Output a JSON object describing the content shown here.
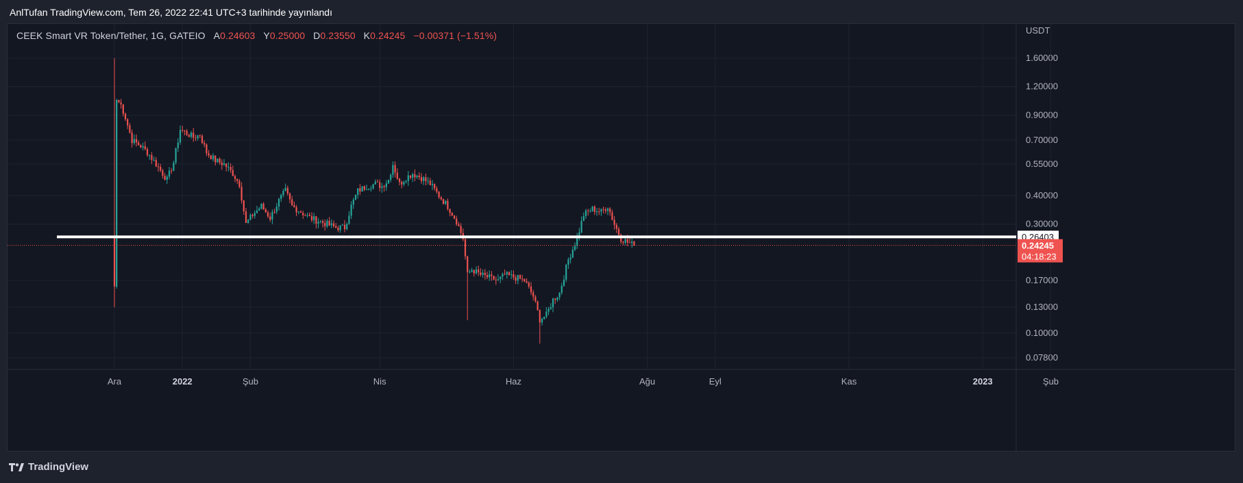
{
  "header": {
    "publish_info": "AnlTufan TradingView.com, Tem 26, 2022 22:41 UTC+3 tarihinde yayınlandı"
  },
  "legend": {
    "symbol": "CEEK Smart VR Token/Tether, 1G, GATEIO",
    "open_label": "A",
    "open": "0.24603",
    "high_label": "Y",
    "high": "0.25000",
    "low_label": "D",
    "low": "0.23550",
    "close_label": "K",
    "close": "0.24245",
    "change": "−0.00371 (−1.51%)"
  },
  "footer": {
    "brand": "TradingView"
  },
  "colors": {
    "up": "#26a69a",
    "down": "#ef5350",
    "background": "#131722",
    "grid": "#1f2330",
    "hline": "#ffffff"
  },
  "chart_data": {
    "type": "candlestick",
    "scale": "log",
    "y_unit": "USDT",
    "y_ticks": [
      1.6,
      1.2,
      0.9,
      0.7,
      0.55,
      0.4,
      0.3,
      0.17,
      0.13,
      0.1,
      0.078
    ],
    "y_tick_labels": [
      "1.60000",
      "1.20000",
      "0.90000",
      "0.70000",
      "0.55000",
      "0.40000",
      "0.30000",
      "0.17000",
      "0.13000",
      "0.10000",
      "0.07800"
    ],
    "x_ticks": [
      {
        "label": "Ara",
        "date": "2021-12-01",
        "bold": false
      },
      {
        "label": "2022",
        "date": "2022-01-01",
        "bold": true
      },
      {
        "label": "Şub",
        "date": "2022-02-01",
        "bold": false
      },
      {
        "label": "Nis",
        "date": "2022-04-01",
        "bold": false
      },
      {
        "label": "Haz",
        "date": "2022-06-01",
        "bold": false
      },
      {
        "label": "Ağu",
        "date": "2022-08-01",
        "bold": false
      },
      {
        "label": "Eyl",
        "date": "2022-09-01",
        "bold": false
      },
      {
        "label": "Kas",
        "date": "2022-11-01",
        "bold": false
      },
      {
        "label": "2023",
        "date": "2023-01-01",
        "bold": true
      },
      {
        "label": "Şub",
        "date": "2023-02-01",
        "bold": false
      }
    ],
    "first_date": "2021-12-01",
    "horizontal_line": {
      "value": 0.26403,
      "label": "0.26403"
    },
    "last_price": {
      "value": 0.24245,
      "label": "0.24245",
      "countdown": "04:18:23"
    },
    "close_anchors": [
      [
        "2021-12-01",
        0.16
      ],
      [
        "2021-12-02",
        1.05
      ],
      [
        "2021-12-04",
        1.0
      ],
      [
        "2021-12-06",
        0.88
      ],
      [
        "2021-12-09",
        0.7
      ],
      [
        "2021-12-13",
        0.66
      ],
      [
        "2021-12-16",
        0.62
      ],
      [
        "2021-12-20",
        0.55
      ],
      [
        "2021-12-23",
        0.5
      ],
      [
        "2021-12-25",
        0.47
      ],
      [
        "2021-12-28",
        0.56
      ],
      [
        "2021-12-31",
        0.78
      ],
      [
        "2022-01-03",
        0.75
      ],
      [
        "2022-01-06",
        0.72
      ],
      [
        "2022-01-09",
        0.74
      ],
      [
        "2022-01-12",
        0.62
      ],
      [
        "2022-01-16",
        0.57
      ],
      [
        "2022-01-20",
        0.55
      ],
      [
        "2022-01-24",
        0.5
      ],
      [
        "2022-01-27",
        0.45
      ],
      [
        "2022-01-30",
        0.3
      ],
      [
        "2022-02-02",
        0.33
      ],
      [
        "2022-02-06",
        0.36
      ],
      [
        "2022-02-10",
        0.32
      ],
      [
        "2022-02-14",
        0.38
      ],
      [
        "2022-02-17",
        0.42
      ],
      [
        "2022-02-20",
        0.36
      ],
      [
        "2022-02-24",
        0.34
      ],
      [
        "2022-02-28",
        0.32
      ],
      [
        "2022-03-04",
        0.31
      ],
      [
        "2022-03-08",
        0.3
      ],
      [
        "2022-03-12",
        0.29
      ],
      [
        "2022-03-16",
        0.29
      ],
      [
        "2022-03-19",
        0.36
      ],
      [
        "2022-03-22",
        0.42
      ],
      [
        "2022-03-26",
        0.44
      ],
      [
        "2022-03-30",
        0.45
      ],
      [
        "2022-04-02",
        0.44
      ],
      [
        "2022-04-05",
        0.47
      ],
      [
        "2022-04-07",
        0.55
      ],
      [
        "2022-04-10",
        0.45
      ],
      [
        "2022-04-13",
        0.48
      ],
      [
        "2022-04-16",
        0.5
      ],
      [
        "2022-04-20",
        0.48
      ],
      [
        "2022-04-24",
        0.45
      ],
      [
        "2022-04-28",
        0.4
      ],
      [
        "2022-05-02",
        0.36
      ],
      [
        "2022-05-06",
        0.31
      ],
      [
        "2022-05-09",
        0.26
      ],
      [
        "2022-05-11",
        0.18
      ],
      [
        "2022-05-13",
        0.19
      ],
      [
        "2022-05-17",
        0.18
      ],
      [
        "2022-05-21",
        0.175
      ],
      [
        "2022-05-25",
        0.17
      ],
      [
        "2022-05-28",
        0.18
      ],
      [
        "2022-06-02",
        0.175
      ],
      [
        "2022-06-06",
        0.17
      ],
      [
        "2022-06-10",
        0.145
      ],
      [
        "2022-06-13",
        0.115
      ],
      [
        "2022-06-16",
        0.12
      ],
      [
        "2022-06-19",
        0.14
      ],
      [
        "2022-06-22",
        0.15
      ],
      [
        "2022-06-26",
        0.21
      ],
      [
        "2022-06-30",
        0.26
      ],
      [
        "2022-07-03",
        0.33
      ],
      [
        "2022-07-07",
        0.35
      ],
      [
        "2022-07-11",
        0.34
      ],
      [
        "2022-07-14",
        0.36
      ],
      [
        "2022-07-17",
        0.3
      ],
      [
        "2022-07-20",
        0.26
      ],
      [
        "2022-07-23",
        0.25
      ],
      [
        "2022-07-26",
        0.24245
      ]
    ]
  }
}
